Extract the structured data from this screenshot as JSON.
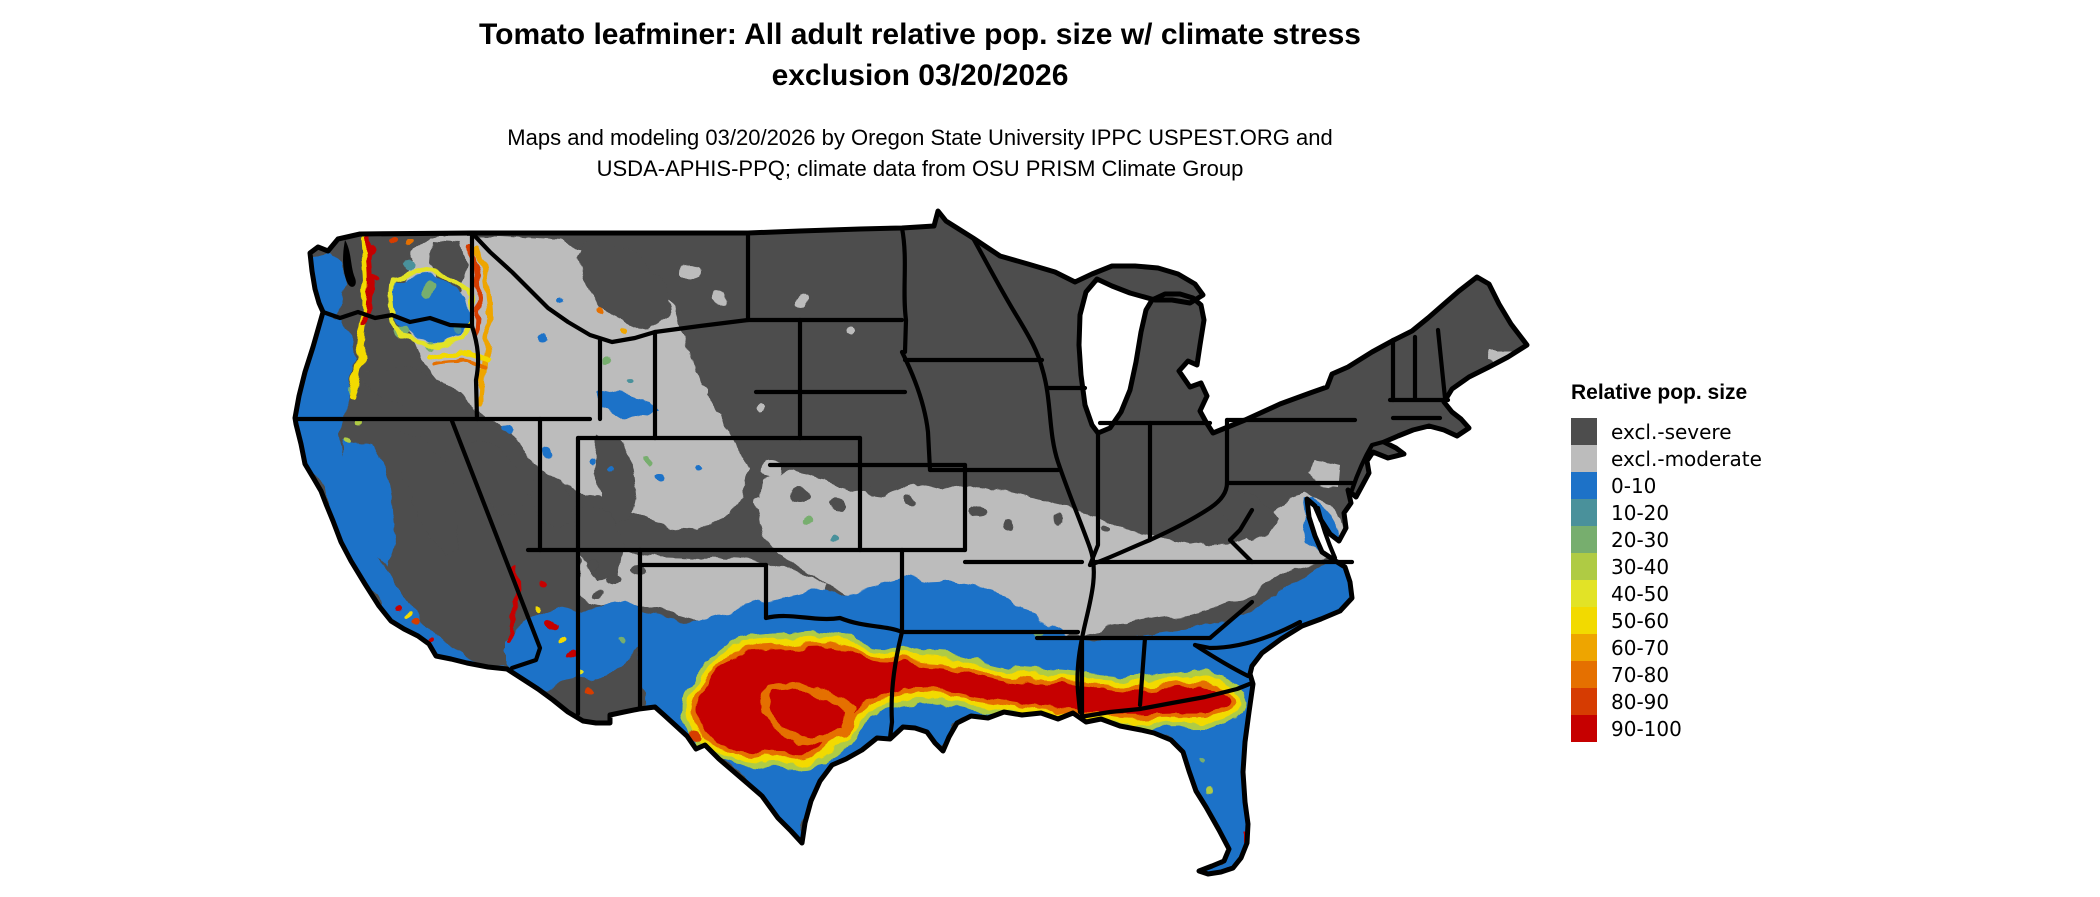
{
  "header": {
    "title_line1": "Tomato leafminer: All adult relative pop. size w/ climate stress",
    "title_line2": "exclusion 03/20/2026",
    "subtitle_line1": "Maps and modeling 03/20/2026 by Oregon State University IPPC USPEST.ORG and",
    "subtitle_line2": "USDA-APHIS-PPQ; climate data from OSU PRISM Climate Group"
  },
  "map": {
    "area": "Contiguous United States",
    "border_color": "#000000",
    "background_color": "#FFFFFF"
  },
  "legend": {
    "title": "Relative pop. size",
    "entries": [
      {
        "label": "excl.-severe",
        "color": "#4D4D4D"
      },
      {
        "label": "excl.-moderate",
        "color": "#BCBCBC"
      },
      {
        "label": "0-10",
        "color": "#1D72C8"
      },
      {
        "label": "10-20",
        "color": "#4A919B"
      },
      {
        "label": "20-30",
        "color": "#77AE6E"
      },
      {
        "label": "30-40",
        "color": "#AFCB44"
      },
      {
        "label": "40-50",
        "color": "#E2E326"
      },
      {
        "label": "50-60",
        "color": "#F2DA00"
      },
      {
        "label": "60-70",
        "color": "#EEA500"
      },
      {
        "label": "70-80",
        "color": "#E57000"
      },
      {
        "label": "80-90",
        "color": "#D63C02"
      },
      {
        "label": "90-100",
        "color": "#C60000"
      }
    ]
  }
}
